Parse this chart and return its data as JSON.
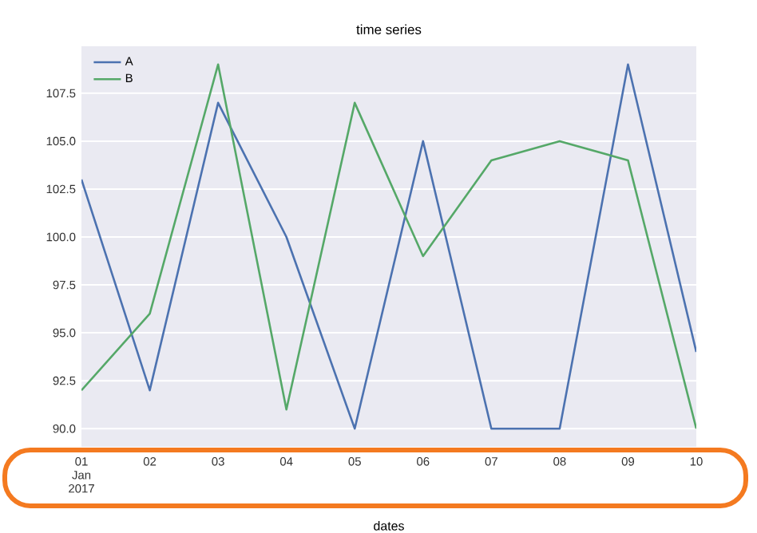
{
  "chart_data": {
    "type": "line",
    "title": "time series",
    "xlabel": "dates",
    "x": [
      "2017-01-01",
      "2017-01-02",
      "2017-01-03",
      "2017-01-04",
      "2017-01-05",
      "2017-01-06",
      "2017-01-07",
      "2017-01-08",
      "2017-01-09",
      "2017-01-10"
    ],
    "series": [
      {
        "name": "A",
        "color": "#4c72b0",
        "values": [
          103,
          92,
          107,
          100,
          90,
          105,
          90,
          90,
          109,
          94
        ]
      },
      {
        "name": "B",
        "color": "#55a868",
        "values": [
          92,
          96,
          109,
          91,
          107,
          99,
          104,
          105,
          104,
          90
        ]
      }
    ],
    "xlim": [
      "2017-01-01",
      "2017-01-10"
    ],
    "xticks": [
      {
        "value": "2017-01-01",
        "label": "01 Jan 2017"
      },
      {
        "value": "2017-01-02",
        "label": "02"
      },
      {
        "value": "2017-01-03",
        "label": "03"
      },
      {
        "value": "2017-01-04",
        "label": "04"
      },
      {
        "value": "2017-01-05",
        "label": "05"
      },
      {
        "value": "2017-01-06",
        "label": "06"
      },
      {
        "value": "2017-01-07",
        "label": "07"
      },
      {
        "value": "2017-01-08",
        "label": "08"
      },
      {
        "value": "2017-01-09",
        "label": "09"
      },
      {
        "value": "2017-01-10",
        "label": "10"
      }
    ],
    "ylim": [
      89.05,
      109.95
    ],
    "yticks": [
      {
        "value": 90,
        "label": "90.0"
      },
      92.5,
      {
        "value": 95,
        "label": "95.0"
      },
      97.5,
      {
        "value": 100,
        "label": "100.0"
      },
      102.5,
      {
        "value": 105,
        "label": "105.0"
      },
      107.5
    ],
    "grid": "y",
    "legend": "top left",
    "line_style": "solid",
    "marker": "none"
  }
}
